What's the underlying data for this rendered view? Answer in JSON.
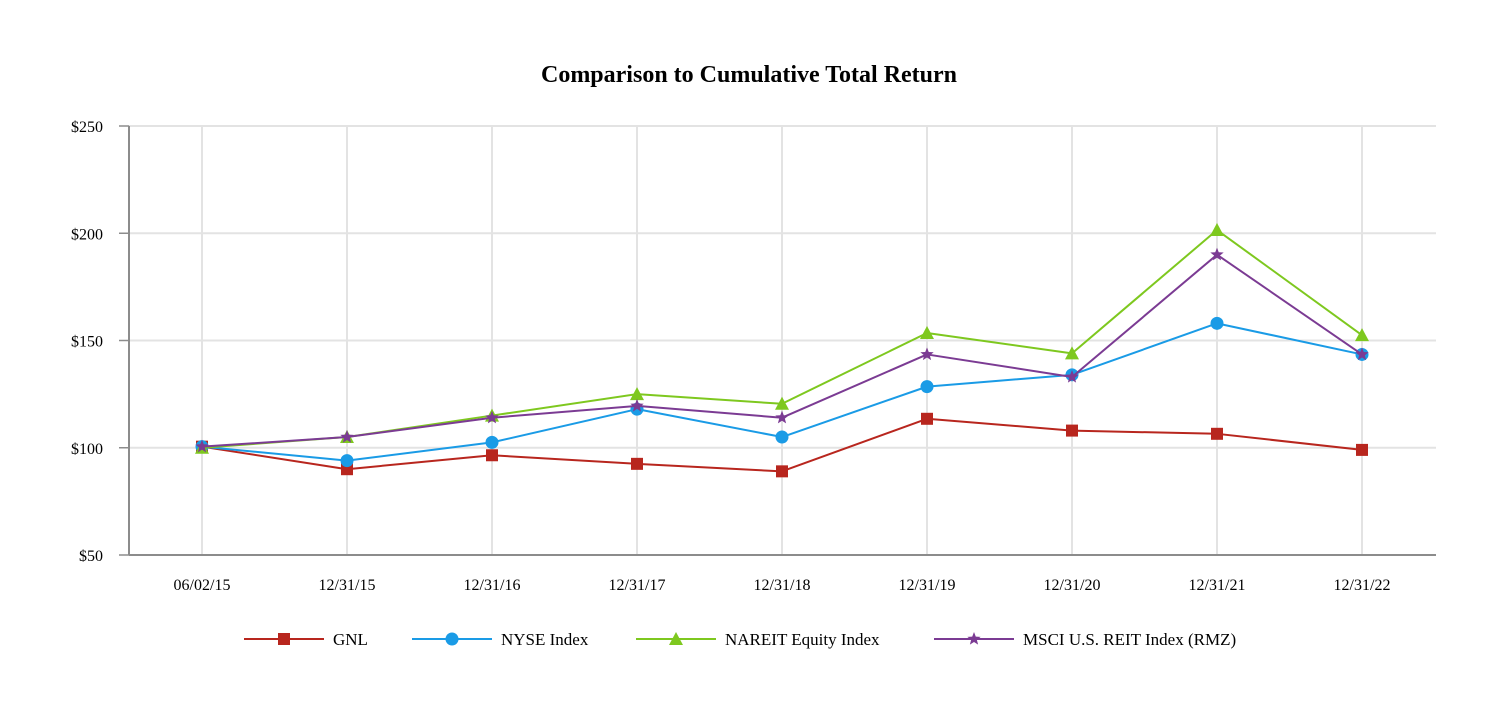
{
  "chart_data": {
    "type": "line",
    "title": "Comparison to Cumulative Total Return",
    "xlabel": "",
    "ylabel": "",
    "categories": [
      "06/02/15",
      "12/31/15",
      "12/31/16",
      "12/31/17",
      "12/31/18",
      "12/31/19",
      "12/31/20",
      "12/31/21",
      "12/31/22"
    ],
    "ylim": [
      50,
      250
    ],
    "yticks": [
      50,
      100,
      150,
      200,
      250
    ],
    "ytick_labels": [
      "$50",
      "$100",
      "$150",
      "$200",
      "$250"
    ],
    "grid": true,
    "legend_position": "bottom-center",
    "series": [
      {
        "name": "GNL",
        "color": "#b8261e",
        "marker": "square",
        "values": [
          100.5,
          90,
          96.5,
          92.5,
          89,
          113.5,
          108,
          106.5,
          99
        ]
      },
      {
        "name": "NYSE Index",
        "color": "#1a9be6",
        "marker": "circle",
        "values": [
          100.5,
          94,
          102.5,
          118,
          105,
          128.5,
          134,
          158,
          143.5
        ]
      },
      {
        "name": "NAREIT Equity Index",
        "color": "#7ec81f",
        "marker": "triangle",
        "values": [
          100,
          105,
          115,
          125,
          120.5,
          153.5,
          144,
          201.5,
          152.5
        ]
      },
      {
        "name": "MSCI U.S. REIT Index (RMZ)",
        "color": "#7b3b93",
        "marker": "star",
        "values": [
          100.5,
          105,
          114,
          119.5,
          114,
          143.5,
          133,
          190,
          143.5
        ]
      }
    ]
  }
}
